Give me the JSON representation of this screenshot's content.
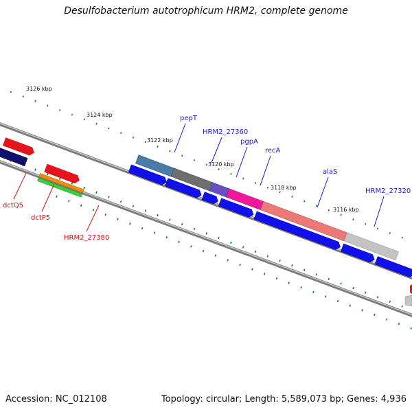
{
  "title": "Desulfobacterium autotrophicum HRM2, complete genome",
  "footer": {
    "accession": "Accession: NC_012108",
    "summary": "Topology: circular; Length: 5,589,073 bp; Genes: 4,936"
  },
  "colors": {
    "backbone": "#808080",
    "tick": "#1a7a1a",
    "forward_label": "#1a1acc",
    "reverse_label": "#cc1111"
  },
  "position_marks": [
    {
      "label": "3126 kbp"
    },
    {
      "label": "3124 kbp"
    },
    {
      "label": "3122 kbp"
    },
    {
      "label": "3120 kbp"
    },
    {
      "label": "3118 kbp"
    },
    {
      "label": "3116 kbp"
    }
  ],
  "gene_labels": [
    {
      "text": "pepT",
      "strand": "forward"
    },
    {
      "text": "HRM2_27360",
      "strand": "forward"
    },
    {
      "text": "pgpA",
      "strand": "forward"
    },
    {
      "text": "recA",
      "strand": "forward"
    },
    {
      "text": "alaS",
      "strand": "forward"
    },
    {
      "text": "HRM2_27320",
      "strand": "forward"
    },
    {
      "text": "dctQ5",
      "strand": "reverse"
    },
    {
      "text": "dctP5",
      "strand": "reverse"
    },
    {
      "text": "HRM2_27380",
      "strand": "reverse"
    }
  ]
}
